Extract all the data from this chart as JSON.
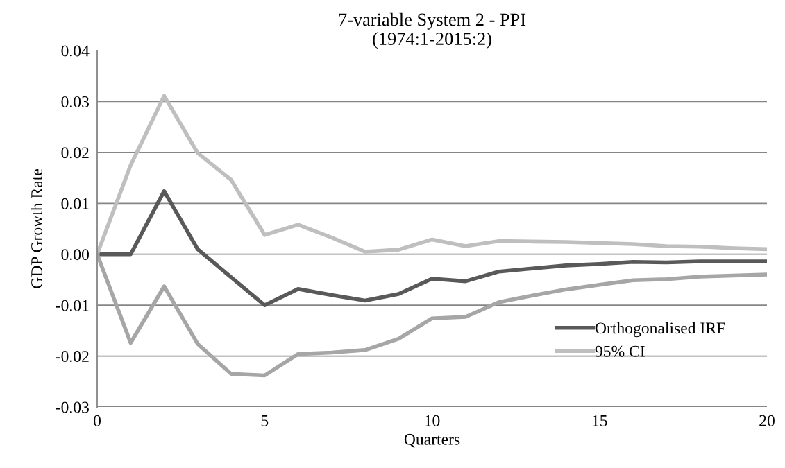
{
  "chart_data": {
    "type": "line",
    "title": "7-variable System 2 - PPI\n(1974:1-2015:2)",
    "xlabel": "Quarters",
    "ylabel": "GDP Growth Rate",
    "x": [
      0,
      1,
      2,
      3,
      4,
      5,
      6,
      7,
      8,
      9,
      10,
      11,
      12,
      13,
      14,
      15,
      16,
      17,
      18,
      19,
      20
    ],
    "series": [
      {
        "name": "Orthogonalised IRF",
        "color": "#595959",
        "values": [
          0,
          0,
          0.0124,
          0.001,
          -0.0045,
          -0.01,
          -0.0068,
          -0.008,
          -0.0091,
          -0.0078,
          -0.0048,
          -0.0053,
          -0.0034,
          -0.0028,
          -0.0022,
          -0.0019,
          -0.0015,
          -0.0016,
          -0.0014,
          -0.0014,
          -0.0014
        ]
      },
      {
        "name": "95% CI",
        "color": "#bfbfbf",
        "values": [
          0,
          0.0175,
          0.0311,
          0.0199,
          0.0146,
          0.0038,
          0.0058,
          0.0033,
          0.0005,
          0.0009,
          0.0029,
          0.0016,
          0.0026,
          0.0025,
          0.0024,
          0.0022,
          0.002,
          0.0016,
          0.0015,
          0.0012,
          0.001
        ]
      },
      {
        "color": "#a6a6a6",
        "values": [
          0,
          -0.0174,
          -0.0063,
          -0.0176,
          -0.0235,
          -0.0238,
          -0.0196,
          -0.0193,
          -0.0188,
          -0.0166,
          -0.0126,
          -0.0123,
          -0.0094,
          -0.0081,
          -0.0069,
          -0.006,
          -0.0051,
          -0.0049,
          -0.0044,
          -0.0042,
          -0.004
        ]
      }
    ],
    "xlim": [
      0,
      20
    ],
    "xticks": [
      0,
      5,
      10,
      15,
      20
    ],
    "ylim": [
      -0.03,
      0.04
    ],
    "yticks": [
      {
        "value": -0.03,
        "label": "-0.03"
      },
      {
        "value": -0.02,
        "label": "-0.02"
      },
      {
        "value": -0.01,
        "label": "-0.01"
      },
      {
        "value": 0,
        "label": "0.00"
      },
      {
        "value": 0.01,
        "label": "0.01"
      },
      {
        "value": 0.02,
        "label": "0.02"
      },
      {
        "value": 0.03,
        "label": "0.03"
      },
      {
        "value": 0.04,
        "label": "0.04"
      }
    ],
    "grid": "y",
    "legend": "bottom right",
    "marker": "none",
    "line_style": "solid"
  }
}
